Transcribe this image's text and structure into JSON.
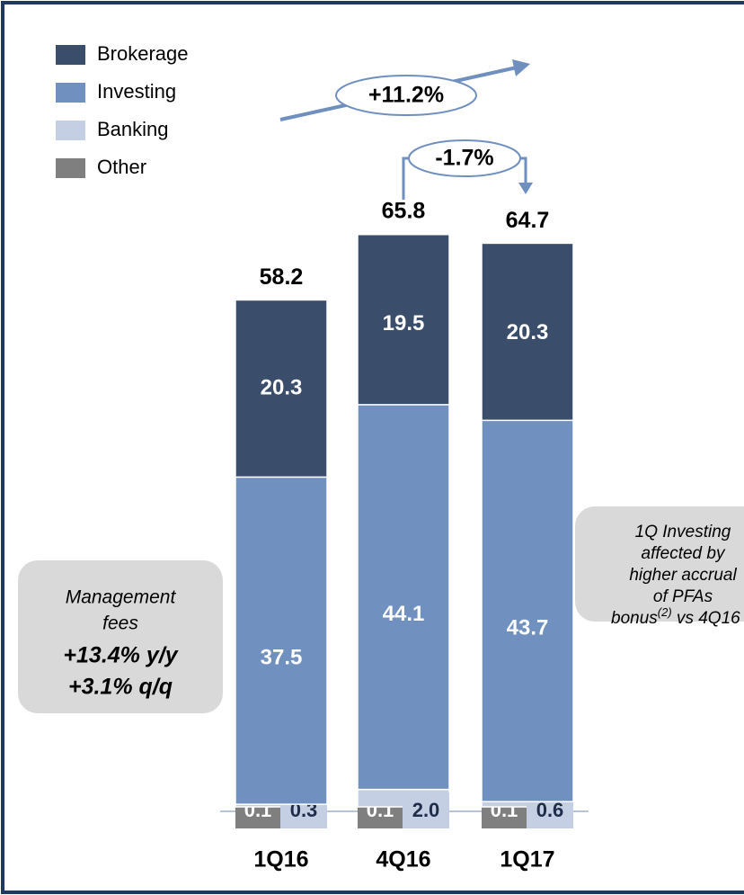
{
  "chart_data": {
    "type": "stacked_bar",
    "categories": [
      "1Q16",
      "4Q16",
      "1Q17"
    ],
    "series": [
      {
        "name": "Brokerage",
        "color": "#3a4d6b",
        "values": [
          20.3,
          19.5,
          20.3
        ]
      },
      {
        "name": "Investing",
        "color": "#7090bf",
        "values": [
          37.5,
          44.1,
          43.7
        ]
      },
      {
        "name": "Banking",
        "color": "#c5cfe3",
        "values": [
          0.3,
          2.0,
          0.6
        ],
        "value_labels": [
          "0.3",
          "2.0",
          "0.6"
        ]
      },
      {
        "name": "Other",
        "color": "#7f7f7f",
        "values": [
          0.1,
          0.1,
          0.1
        ]
      }
    ],
    "totals": [
      58.2,
      65.8,
      64.7
    ],
    "ylim": [
      0,
      70
    ],
    "annotations": {
      "yoy": "+11.2%",
      "qoq": "-1.7%",
      "left_box": {
        "lines": [
          "Management",
          "fees"
        ],
        "bold_lines": [
          "+13.4% y/y",
          "+3.1% q/q"
        ]
      },
      "right_box": {
        "lines": [
          "1Q Investing",
          "affected by",
          "higher accrual",
          "of PFAs"
        ],
        "last": [
          "bonus",
          "(2)",
          " vs 4Q16"
        ]
      }
    }
  }
}
